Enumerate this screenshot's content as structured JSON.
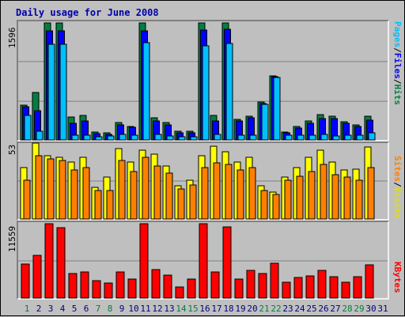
{
  "title": "Daily usage for June 2008",
  "colors": {
    "hits": "#008040",
    "files": "#0000ff",
    "pages": "#00c0ff",
    "visits": "#ffff00",
    "sites": "#ff8000",
    "kbytes": "#ff0000",
    "weekend_label": "#008040",
    "weekday_label": "#000080"
  },
  "chart_data": [
    {
      "type": "bar",
      "ymax_label": "1596",
      "ylim": [
        0,
        1596
      ],
      "categories": [
        "1",
        "2",
        "3",
        "4",
        "5",
        "6",
        "7",
        "8",
        "9",
        "10",
        "11",
        "12",
        "13",
        "14",
        "15",
        "16",
        "17",
        "18",
        "19",
        "20",
        "21",
        "22",
        "23",
        "24",
        "25",
        "26",
        "27",
        "28",
        "29",
        "30",
        "31"
      ],
      "series": [
        {
          "name": "Hits",
          "values": [
            470,
            650,
            1596,
            1596,
            310,
            330,
            110,
            100,
            240,
            185,
            1596,
            305,
            240,
            120,
            120,
            1596,
            330,
            1596,
            280,
            320,
            520,
            870,
            110,
            180,
            260,
            350,
            320,
            250,
            200,
            320,
            0
          ]
        },
        {
          "name": "Files",
          "values": [
            450,
            400,
            1490,
            1490,
            230,
            260,
            90,
            80,
            200,
            170,
            1490,
            260,
            210,
            100,
            100,
            1500,
            260,
            1510,
            260,
            300,
            500,
            860,
            100,
            160,
            230,
            290,
            290,
            230,
            180,
            270,
            0
          ]
        },
        {
          "name": "Pages",
          "values": [
            330,
            120,
            1300,
            1300,
            70,
            70,
            40,
            50,
            80,
            70,
            1330,
            80,
            50,
            40,
            40,
            1280,
            80,
            1320,
            60,
            60,
            490,
            850,
            70,
            60,
            60,
            80,
            50,
            60,
            60,
            100,
            0
          ]
        }
      ],
      "legend": [
        "Pages",
        "Files",
        "Hits"
      ]
    },
    {
      "type": "bar",
      "ymax_label": "53",
      "ylim": [
        0,
        53
      ],
      "categories": [
        "1",
        "2",
        "3",
        "4",
        "5",
        "6",
        "7",
        "8",
        "9",
        "10",
        "11",
        "12",
        "13",
        "14",
        "15",
        "16",
        "17",
        "18",
        "19",
        "20",
        "21",
        "22",
        "23",
        "24",
        "25",
        "26",
        "27",
        "28",
        "29",
        "30",
        "31"
      ],
      "series": [
        {
          "name": "Visits",
          "values": [
            36,
            53,
            44,
            43,
            40,
            43,
            22,
            29,
            49,
            40,
            48,
            45,
            37,
            23,
            27,
            44,
            51,
            47,
            40,
            43,
            23,
            19,
            29,
            36,
            43,
            48,
            40,
            34,
            35,
            50,
            0
          ]
        },
        {
          "name": "Sites",
          "values": [
            27,
            44,
            42,
            41,
            34,
            36,
            20,
            20,
            41,
            33,
            43,
            37,
            32,
            21,
            24,
            36,
            39,
            38,
            34,
            36,
            20,
            17,
            27,
            30,
            33,
            38,
            31,
            29,
            27,
            36,
            0
          ]
        }
      ],
      "legend": [
        "Sites",
        "Visits"
      ]
    },
    {
      "type": "bar",
      "ymax_label": "11559",
      "ylim": [
        0,
        11559
      ],
      "categories": [
        "1",
        "2",
        "3",
        "4",
        "5",
        "6",
        "7",
        "8",
        "9",
        "10",
        "11",
        "12",
        "13",
        "14",
        "15",
        "16",
        "17",
        "18",
        "19",
        "20",
        "21",
        "22",
        "23",
        "24",
        "25",
        "26",
        "27",
        "28",
        "29",
        "30",
        "31"
      ],
      "series": [
        {
          "name": "KBytes",
          "values": [
            5300,
            6600,
            11559,
            11000,
            3800,
            4000,
            2700,
            2300,
            4100,
            3000,
            11559,
            4400,
            3600,
            1700,
            2900,
            11559,
            4000,
            11100,
            3000,
            4300,
            3800,
            5400,
            2400,
            3200,
            3400,
            4300,
            3300,
            2400,
            3300,
            5200,
            0
          ]
        }
      ],
      "legend": [
        "KBytes"
      ]
    }
  ],
  "weekend_days": [
    1,
    7,
    8,
    14,
    15,
    21,
    22,
    28,
    29
  ]
}
